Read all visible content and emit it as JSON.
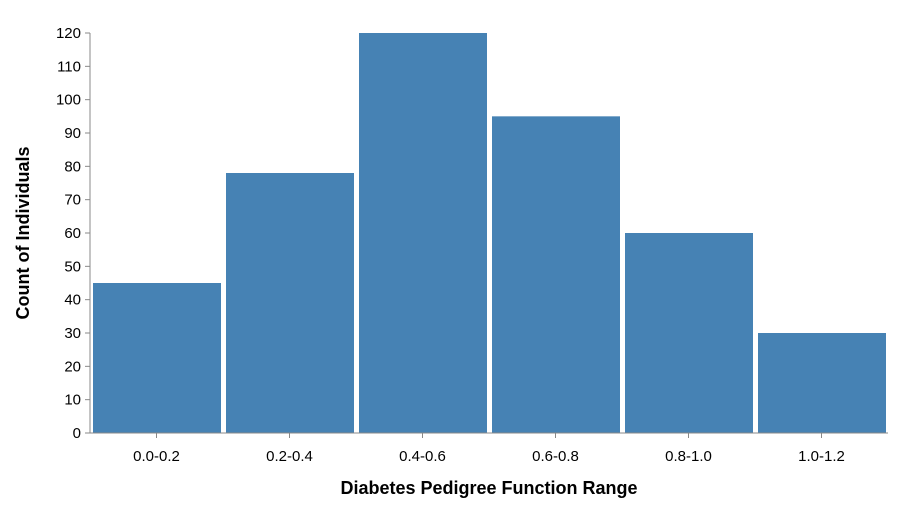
{
  "chart_data": {
    "type": "bar",
    "title": "",
    "xlabel": "Diabetes Pedigree Function Range",
    "ylabel": "Count of Individuals",
    "categories": [
      "0.0-0.2",
      "0.2-0.4",
      "0.4-0.6",
      "0.6-0.8",
      "0.8-1.0",
      "1.0-1.2"
    ],
    "values": [
      45,
      78,
      120,
      95,
      60,
      30
    ],
    "ylim": [
      0,
      120
    ],
    "yticks": [
      0,
      10,
      20,
      30,
      40,
      50,
      60,
      70,
      80,
      90,
      100,
      110,
      120
    ],
    "grid": false,
    "legend": "none",
    "bar_color": "#4682b4",
    "axis_color": "#888888"
  }
}
